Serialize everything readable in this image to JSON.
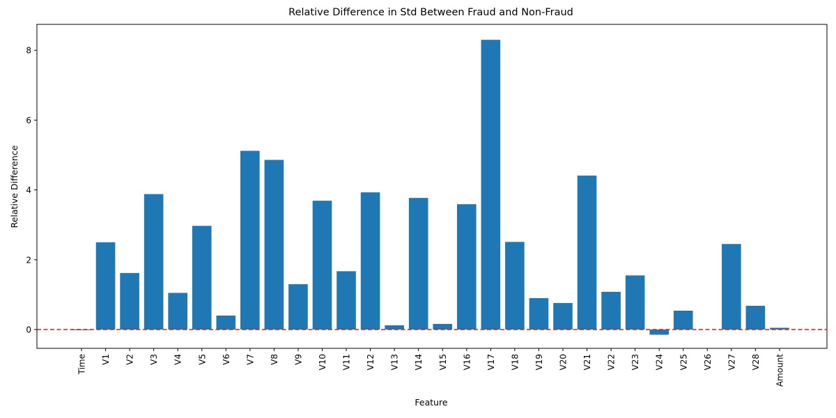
{
  "chart_data": {
    "type": "bar",
    "title": "Relative Difference in Std Between Fraud and Non-Fraud",
    "xlabel": "Feature",
    "ylabel": "Relative Difference",
    "ylim": [
      -0.55,
      8.75
    ],
    "yticks": [
      0,
      2,
      4,
      6,
      8
    ],
    "grid": false,
    "bar_color": "#1f77b4",
    "reference_line": {
      "y": 0,
      "color": "#d62728",
      "style": "dashed"
    },
    "categories": [
      "Time",
      "V1",
      "V2",
      "V3",
      "V4",
      "V5",
      "V6",
      "V7",
      "V8",
      "V9",
      "V10",
      "V11",
      "V12",
      "V13",
      "V14",
      "V15",
      "V16",
      "V17",
      "V18",
      "V19",
      "V20",
      "V21",
      "V22",
      "V23",
      "V24",
      "V25",
      "V26",
      "V27",
      "V28",
      "Amount"
    ],
    "values": [
      -0.02,
      2.5,
      1.62,
      3.88,
      1.05,
      2.97,
      0.4,
      5.12,
      4.86,
      1.3,
      3.69,
      1.67,
      3.93,
      0.12,
      3.77,
      0.16,
      3.59,
      8.3,
      2.51,
      0.9,
      0.76,
      4.41,
      1.08,
      1.55,
      -0.15,
      0.54,
      0.0,
      2.45,
      0.68,
      0.05
    ]
  }
}
